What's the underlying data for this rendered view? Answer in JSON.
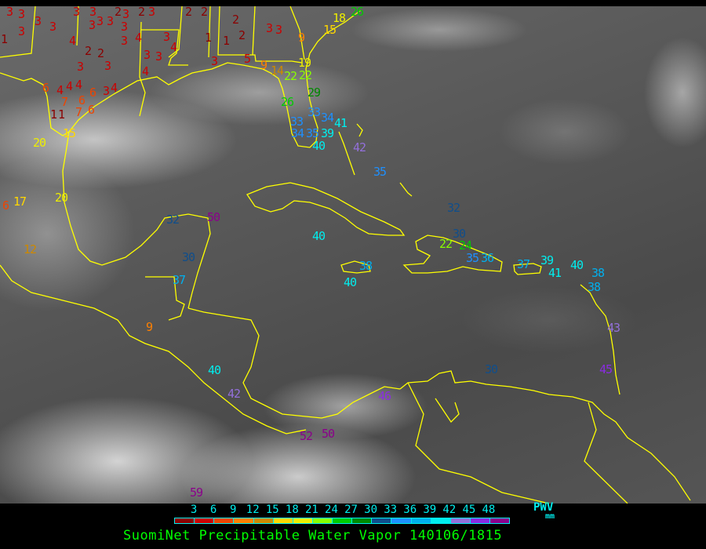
{
  "title": "SuomiNet Precipitable Water Vapor 140106/1815",
  "legend": {
    "unit_label": "PWV",
    "unit_sub": "mm",
    "ticks": [
      "3",
      "6",
      "9",
      "12",
      "15",
      "18",
      "21",
      "24",
      "27",
      "30",
      "33",
      "36",
      "39",
      "42",
      "45",
      "48"
    ],
    "colors": [
      "#8b0000",
      "#cc0000",
      "#ee4400",
      "#ff8000",
      "#cc8800",
      "#ffd700",
      "#eeee00",
      "#88ff00",
      "#00cc00",
      "#008800",
      "#104e8b",
      "#1e90ff",
      "#00b0ee",
      "#00eeee",
      "#9370db",
      "#8a2be2",
      "#8b008b"
    ]
  },
  "map": {
    "coastline_color": "#ffff00",
    "station_values": [
      3,
      3,
      3,
      1,
      3,
      3,
      4,
      2,
      2,
      3,
      3,
      4,
      6,
      4,
      4,
      4,
      7,
      6,
      6,
      7,
      6,
      1,
      1,
      3,
      3,
      3,
      3,
      3,
      3,
      3,
      3,
      4,
      3,
      3,
      3,
      4,
      4,
      3,
      3,
      2,
      2,
      2,
      2,
      2,
      1,
      1,
      2,
      3,
      3,
      3,
      5,
      9,
      9,
      14,
      22,
      22,
      19,
      18,
      15,
      26,
      29,
      26,
      33,
      34,
      33,
      34,
      35,
      39,
      40,
      41,
      42,
      32,
      30,
      22,
      24,
      35,
      36,
      37,
      39,
      41,
      40,
      38,
      38,
      15,
      20,
      20,
      17,
      6,
      12,
      50,
      32,
      30,
      37,
      9,
      40,
      42,
      52,
      50,
      59,
      46,
      40,
      38,
      40,
      35,
      30,
      43,
      45
    ]
  }
}
